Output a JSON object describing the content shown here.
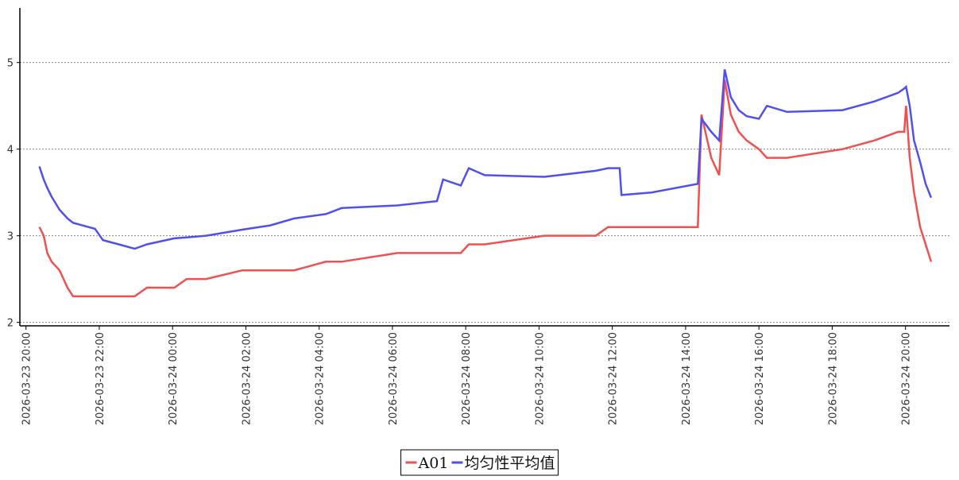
{
  "chart_data": {
    "type": "line",
    "x": [
      "2026-03-23 20:22",
      "2026-03-23 20:29",
      "2026-03-23 20:35",
      "2026-03-23 20:42",
      "2026-03-23 20:55",
      "2026-03-23 21:08",
      "2026-03-23 21:17",
      "2026-03-23 21:53",
      "2026-03-23 22:06",
      "2026-03-23 22:32",
      "2026-03-23 22:58",
      "2026-03-23 23:18",
      "2026-03-24 00:03",
      "2026-03-24 00:23",
      "2026-03-24 00:55",
      "2026-03-24 01:54",
      "2026-03-24 02:40",
      "2026-03-24 03:19",
      "2026-03-24 04:11",
      "2026-03-24 04:37",
      "2026-03-24 06:08",
      "2026-03-24 07:13",
      "2026-03-24 07:23",
      "2026-03-24 07:52",
      "2026-03-24 08:05",
      "2026-03-24 08:31",
      "2026-03-24 10:09",
      "2026-03-24 11:33",
      "2026-03-24 11:53",
      "2026-03-24 12:12",
      "2026-03-24 12:15",
      "2026-03-24 13:04",
      "2026-03-24 14:20",
      "2026-03-24 14:26",
      "2026-03-24 14:42",
      "2026-03-24 14:55",
      "2026-03-24 15:04",
      "2026-03-24 15:14",
      "2026-03-24 15:27",
      "2026-03-24 15:40",
      "2026-03-24 16:00",
      "2026-03-24 16:13",
      "2026-03-24 16:46",
      "2026-03-24 18:17",
      "2026-03-24 19:09",
      "2026-03-24 19:48",
      "2026-03-24 19:58",
      "2026-03-24 20:01",
      "2026-03-24 20:07",
      "2026-03-24 20:14",
      "2026-03-24 20:24",
      "2026-03-24 20:33",
      "2026-03-24 20:42"
    ],
    "series": [
      {
        "name": "A01",
        "color": "#f05050",
        "values": [
          3.1,
          3.0,
          2.8,
          2.7,
          2.6,
          2.4,
          2.3,
          2.3,
          2.3,
          2.3,
          2.3,
          2.4,
          2.4,
          2.5,
          2.5,
          2.6,
          2.6,
          2.6,
          2.7,
          2.7,
          2.8,
          2.8,
          2.8,
          2.8,
          2.9,
          2.9,
          3.0,
          3.0,
          3.1,
          3.1,
          3.1,
          3.1,
          3.1,
          4.4,
          3.9,
          3.7,
          4.8,
          4.4,
          4.2,
          4.1,
          4.0,
          3.9,
          3.9,
          4.0,
          4.1,
          4.2,
          4.2,
          4.5,
          3.9,
          3.5,
          3.1,
          2.9,
          2.7
        ]
      },
      {
        "name": "均匀性平均值",
        "color": "#5050f0",
        "values": [
          3.8,
          3.65,
          3.55,
          3.45,
          3.3,
          3.2,
          3.15,
          3.08,
          2.95,
          2.9,
          2.85,
          2.9,
          2.97,
          2.98,
          3.0,
          3.07,
          3.12,
          3.2,
          3.25,
          3.32,
          3.35,
          3.4,
          3.65,
          3.58,
          3.78,
          3.7,
          3.68,
          3.75,
          3.78,
          3.78,
          3.47,
          3.5,
          3.6,
          4.35,
          4.2,
          4.1,
          4.92,
          4.6,
          4.45,
          4.38,
          4.35,
          4.5,
          4.43,
          4.45,
          4.55,
          4.65,
          4.7,
          4.72,
          4.5,
          4.1,
          3.85,
          3.6,
          3.44
        ]
      }
    ],
    "xlim": [
      "2026-03-23 19:50",
      "2026-03-24 21:12"
    ],
    "xticks": [
      "2026-03-23 20:00",
      "2026-03-23 22:00",
      "2026-03-24 00:00",
      "2026-03-24 02:00",
      "2026-03-24 04:00",
      "2026-03-24 06:00",
      "2026-03-24 08:00",
      "2026-03-24 10:00",
      "2026-03-24 12:00",
      "2026-03-24 14:00",
      "2026-03-24 16:00",
      "2026-03-24 18:00",
      "2026-03-24 20:00"
    ],
    "ylim": [
      1.96,
      5.63
    ],
    "yticks": [
      2,
      3,
      4,
      5
    ],
    "grid": true,
    "legend": "bottom"
  }
}
